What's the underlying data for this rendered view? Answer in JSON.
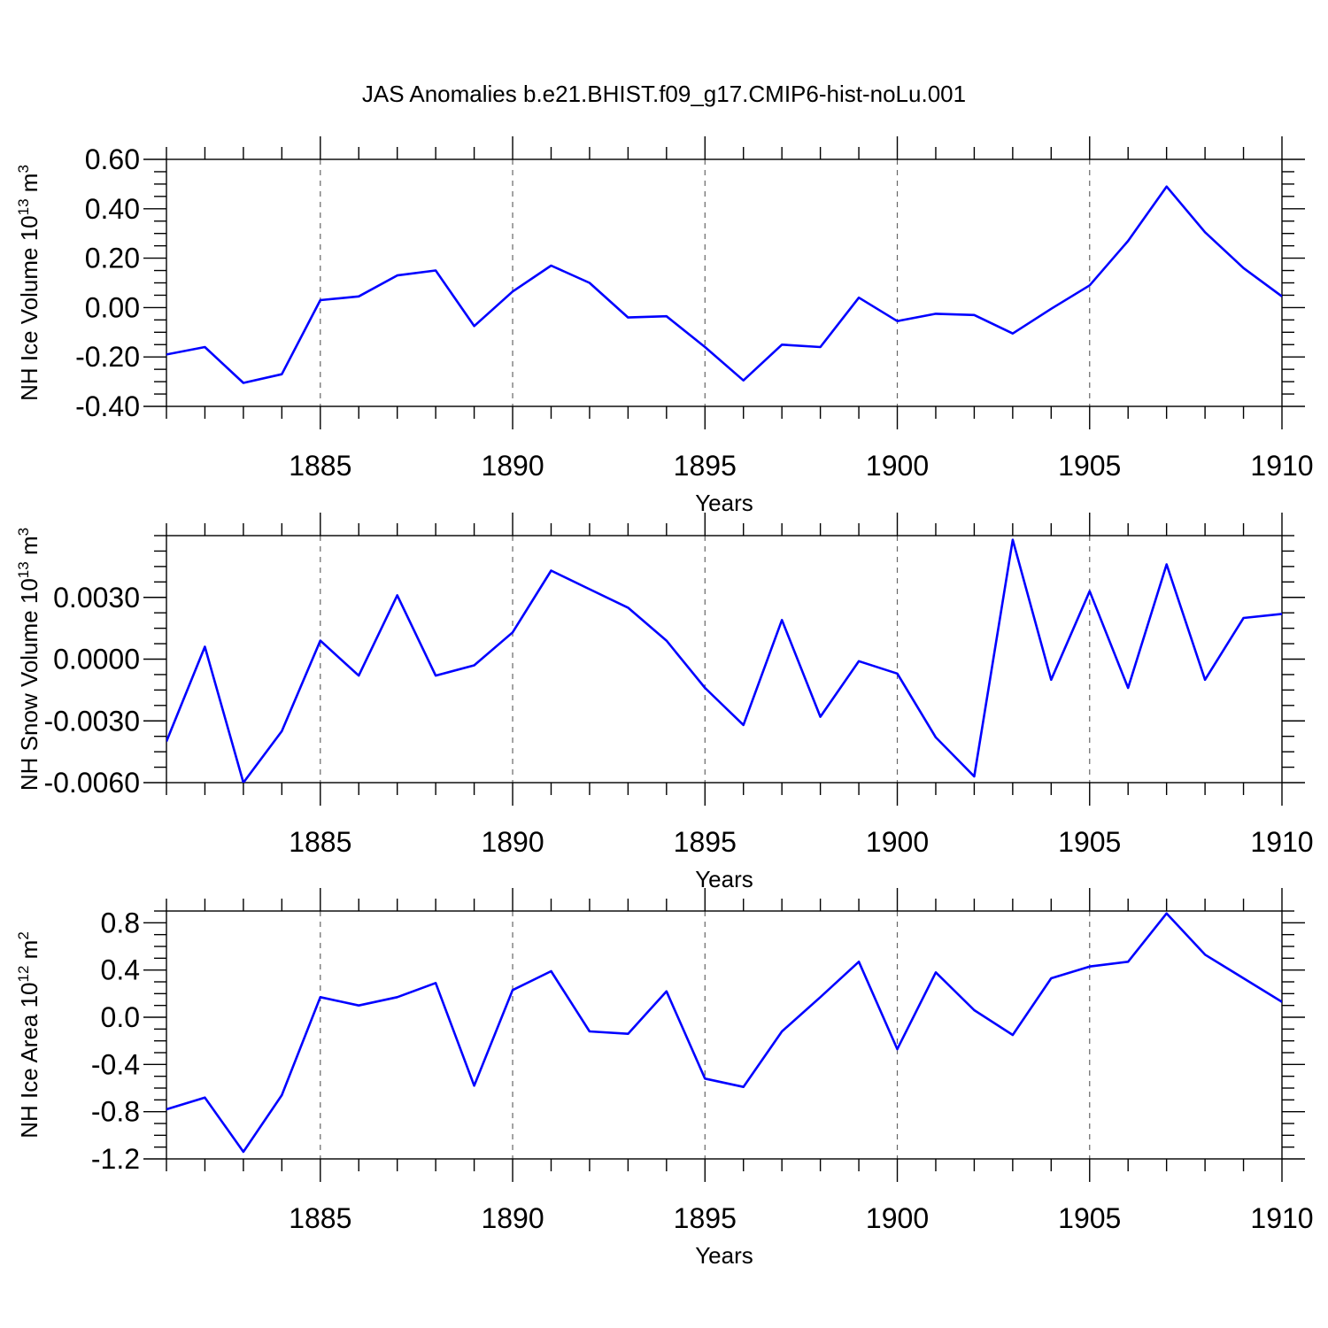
{
  "title": "JAS Anomalies b.e21.BHIST.f09_g17.CMIP6-hist-noLu.001",
  "chart_data": [
    {
      "type": "line",
      "title": "",
      "xlabel": "Years",
      "ylabel": "NH Ice Volume 10",
      "ylabel_sup": "13",
      "ylabel_unit": "m",
      "ylabel_unit_sup": "3",
      "xlim": [
        1881,
        1910
      ],
      "ylim": [
        -0.4,
        0.6
      ],
      "yticks": [
        -0.4,
        -0.2,
        0.0,
        0.2,
        0.4,
        0.6
      ],
      "ytick_labels": [
        "-0.40",
        "-0.20",
        "0.00",
        "0.20",
        "0.40",
        "0.60"
      ],
      "xticks": [
        1885,
        1890,
        1895,
        1900,
        1905,
        1910
      ],
      "xtick_labels": [
        "1885",
        "1890",
        "1895",
        "1900",
        "1905",
        "1910"
      ],
      "grid": "vertical dashed at major x ticks",
      "x": [
        1881,
        1882,
        1883,
        1884,
        1885,
        1886,
        1887,
        1888,
        1889,
        1890,
        1891,
        1892,
        1893,
        1894,
        1895,
        1896,
        1897,
        1898,
        1899,
        1900,
        1901,
        1902,
        1903,
        1904,
        1905,
        1906,
        1907,
        1908,
        1909,
        1910
      ],
      "series": [
        {
          "name": "NH Ice Volume",
          "color": "#0000ff",
          "values": [
            -0.19,
            -0.16,
            -0.305,
            -0.27,
            0.03,
            0.045,
            0.13,
            0.15,
            -0.075,
            0.065,
            0.17,
            0.1,
            -0.04,
            -0.035,
            -0.16,
            -0.295,
            -0.15,
            -0.16,
            0.04,
            -0.055,
            -0.025,
            -0.03,
            -0.105,
            -0.005,
            0.09,
            0.27,
            0.49,
            0.305,
            0.16,
            0.045
          ]
        }
      ]
    },
    {
      "type": "line",
      "title": "",
      "xlabel": "Years",
      "ylabel": "NH Snow Volume 10",
      "ylabel_sup": "13",
      "ylabel_unit": "m",
      "ylabel_unit_sup": "3",
      "xlim": [
        1881,
        1910
      ],
      "ylim": [
        -0.006,
        0.006
      ],
      "yticks": [
        -0.006,
        -0.003,
        0.0,
        0.003
      ],
      "ytick_labels": [
        "-0.0060",
        "-0.0030",
        "0.0000",
        "0.0030"
      ],
      "xticks": [
        1885,
        1890,
        1895,
        1900,
        1905,
        1910
      ],
      "xtick_labels": [
        "1885",
        "1890",
        "1895",
        "1900",
        "1905",
        "1910"
      ],
      "grid": "vertical dashed at major x ticks",
      "x": [
        1881,
        1882,
        1883,
        1884,
        1885,
        1886,
        1887,
        1888,
        1889,
        1890,
        1891,
        1892,
        1893,
        1894,
        1895,
        1896,
        1897,
        1898,
        1899,
        1900,
        1901,
        1902,
        1903,
        1904,
        1905,
        1906,
        1907,
        1908,
        1909,
        1910
      ],
      "series": [
        {
          "name": "NH Snow Volume",
          "color": "#0000ff",
          "values": [
            -0.004,
            0.0006,
            -0.006,
            -0.0035,
            0.0009,
            -0.0008,
            0.0031,
            -0.0008,
            -0.0003,
            0.0013,
            0.0043,
            0.0034,
            0.0025,
            0.0009,
            -0.0014,
            -0.0032,
            0.0019,
            -0.0028,
            -0.0001,
            -0.0007,
            -0.0038,
            -0.0057,
            0.0058,
            -0.001,
            0.0033,
            -0.0014,
            0.0046,
            -0.001,
            0.002,
            0.0022
          ]
        }
      ]
    },
    {
      "type": "line",
      "title": "",
      "xlabel": "Years",
      "ylabel": "NH Ice Area 10",
      "ylabel_sup": "12",
      "ylabel_unit": "m",
      "ylabel_unit_sup": "2",
      "xlim": [
        1881,
        1910
      ],
      "ylim": [
        -1.2,
        0.9
      ],
      "yticks": [
        -1.2,
        -0.8,
        -0.4,
        0.0,
        0.4,
        0.8
      ],
      "ytick_labels": [
        "-1.2",
        "-0.8",
        "-0.4",
        "0.0",
        "0.4",
        "0.8"
      ],
      "xticks": [
        1885,
        1890,
        1895,
        1900,
        1905,
        1910
      ],
      "xtick_labels": [
        "1885",
        "1890",
        "1895",
        "1900",
        "1905",
        "1910"
      ],
      "grid": "vertical dashed at major x ticks",
      "x": [
        1881,
        1882,
        1883,
        1884,
        1885,
        1886,
        1887,
        1888,
        1889,
        1890,
        1891,
        1892,
        1893,
        1894,
        1895,
        1896,
        1897,
        1898,
        1899,
        1900,
        1901,
        1902,
        1903,
        1904,
        1905,
        1906,
        1907,
        1908,
        1909,
        1910
      ],
      "series": [
        {
          "name": "NH Ice Area",
          "color": "#0000ff",
          "values": [
            -0.78,
            -0.68,
            -1.14,
            -0.66,
            0.17,
            0.1,
            0.17,
            0.29,
            -0.58,
            0.23,
            0.39,
            -0.12,
            -0.14,
            0.22,
            -0.52,
            -0.59,
            -0.12,
            0.17,
            0.47,
            -0.27,
            0.38,
            0.06,
            -0.15,
            0.33,
            0.43,
            0.47,
            0.88,
            0.53,
            0.33,
            0.13
          ]
        }
      ]
    }
  ]
}
